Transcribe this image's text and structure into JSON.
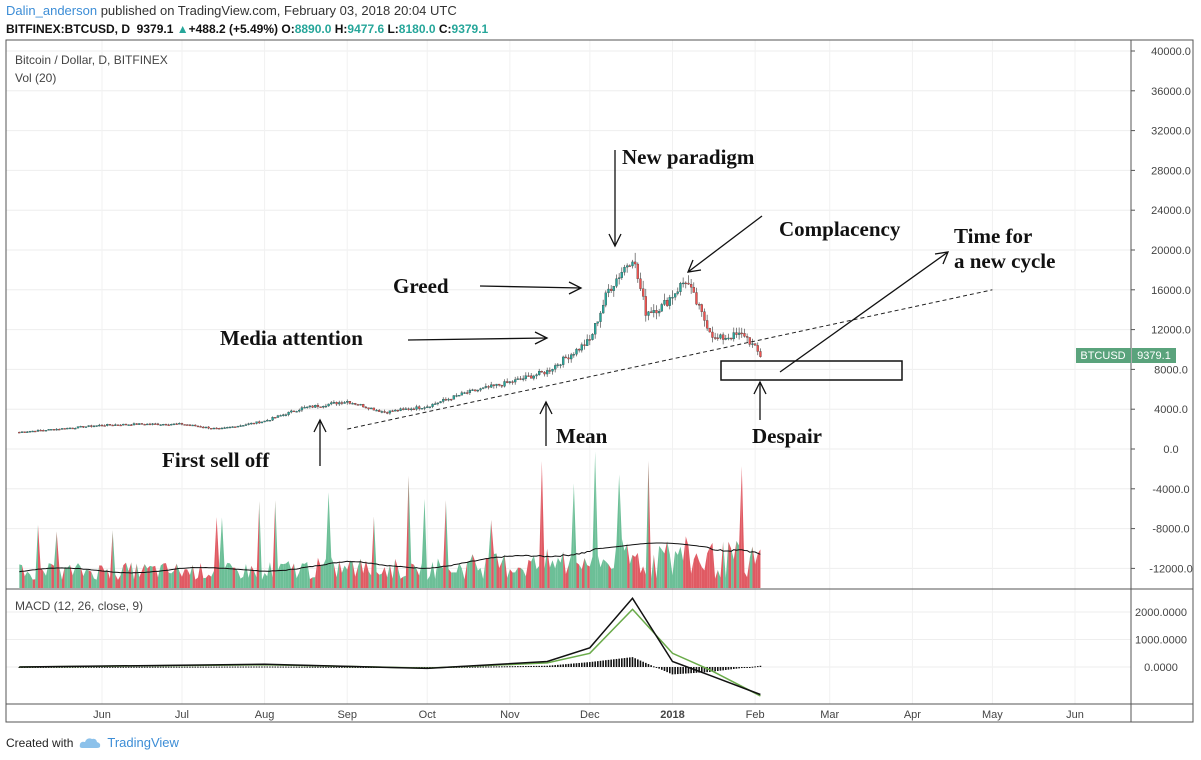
{
  "header": {
    "username": "Dalin_anderson",
    "published": "published on TradingView.com, February 03, 2018 20:04 UTC",
    "symbol": "BITFINEX:BTCUSD, D",
    "last": "9379.1",
    "change": "+488.2 (+5.49%)",
    "o_label": "O:",
    "o_val": "8890.0",
    "h_label": "H:",
    "h_val": "9477.6",
    "l_label": "L:",
    "l_val": "8180.0",
    "c_label": "C:",
    "c_val": "9379.1"
  },
  "panes": {
    "main_title": "Bitcoin / Dollar, D, BITFINEX",
    "vol_title": "Vol (20)",
    "macd_title": "MACD (12, 26, close, 9)"
  },
  "price_tag": {
    "label": "BTCUSD",
    "value": "9379.1",
    "color": "#5aa37c"
  },
  "footer": {
    "created": "Created with",
    "brand": "TradingView"
  },
  "chart_data": {
    "type": "candlestick",
    "price_axis_ticks": [
      "40000.0",
      "36000.0",
      "32000.0",
      "28000.0",
      "24000.0",
      "20000.0",
      "16000.0",
      "12000.0",
      "8000.0",
      "4000.0",
      "0.0",
      "-4000.0",
      "-8000.0",
      "-12000.0"
    ],
    "macd_axis_ticks": [
      "2000.0000",
      "1000.0000",
      "0.0000"
    ],
    "x_ticks": [
      "Jun",
      "Jul",
      "Aug",
      "Sep",
      "Oct",
      "Nov",
      "Dec",
      "2018",
      "Feb",
      "Mar",
      "Apr",
      "May",
      "Jun"
    ],
    "ylim": [
      -14000,
      41000
    ],
    "close_series": {
      "dates": [
        "2017-05-01",
        "2017-05-15",
        "2017-06-01",
        "2017-06-15",
        "2017-07-01",
        "2017-07-15",
        "2017-08-01",
        "2017-08-15",
        "2017-09-01",
        "2017-09-15",
        "2017-10-01",
        "2017-10-15",
        "2017-11-01",
        "2017-11-15",
        "2017-12-01",
        "2017-12-08",
        "2017-12-17",
        "2017-12-22",
        "2017-12-28",
        "2018-01-06",
        "2018-01-12",
        "2018-01-17",
        "2018-01-22",
        "2018-01-28",
        "2018-02-03"
      ],
      "close": [
        1700,
        2000,
        2400,
        2500,
        2500,
        2000,
        2800,
        4100,
        4800,
        3700,
        4300,
        5600,
        6700,
        7800,
        10900,
        16000,
        19400,
        13800,
        14300,
        17000,
        13500,
        11000,
        11300,
        11500,
        9379
      ]
    },
    "trendline": {
      "from": [
        "2017-09-01",
        2000
      ],
      "to": [
        "2018-05-01",
        16000
      ],
      "style": "dashed"
    },
    "annotations": [
      {
        "text": "New paradigm"
      },
      {
        "text": "Complacency"
      },
      {
        "text": "Time for"
      },
      {
        "text": "a new cycle"
      },
      {
        "text": "Greed"
      },
      {
        "text": "Media attention"
      },
      {
        "text": "First sell off"
      },
      {
        "text": "Mean"
      },
      {
        "text": "Despair"
      }
    ],
    "macd": {
      "dates": [
        "2017-05-01",
        "2017-08-01",
        "2017-10-01",
        "2017-11-15",
        "2017-12-01",
        "2017-12-17",
        "2018-01-01",
        "2018-01-15",
        "2018-02-03"
      ],
      "macd": [
        0,
        100,
        -50,
        200,
        700,
        2500,
        200,
        -300,
        -1000
      ],
      "signal": [
        0,
        80,
        -40,
        150,
        500,
        2100,
        500,
        -100,
        -1050
      ]
    },
    "colors": {
      "up": "#26a69a",
      "down": "#ef5350",
      "vol_ma": "#111111",
      "macd": "#111111",
      "signal": "#6aab4a"
    }
  }
}
